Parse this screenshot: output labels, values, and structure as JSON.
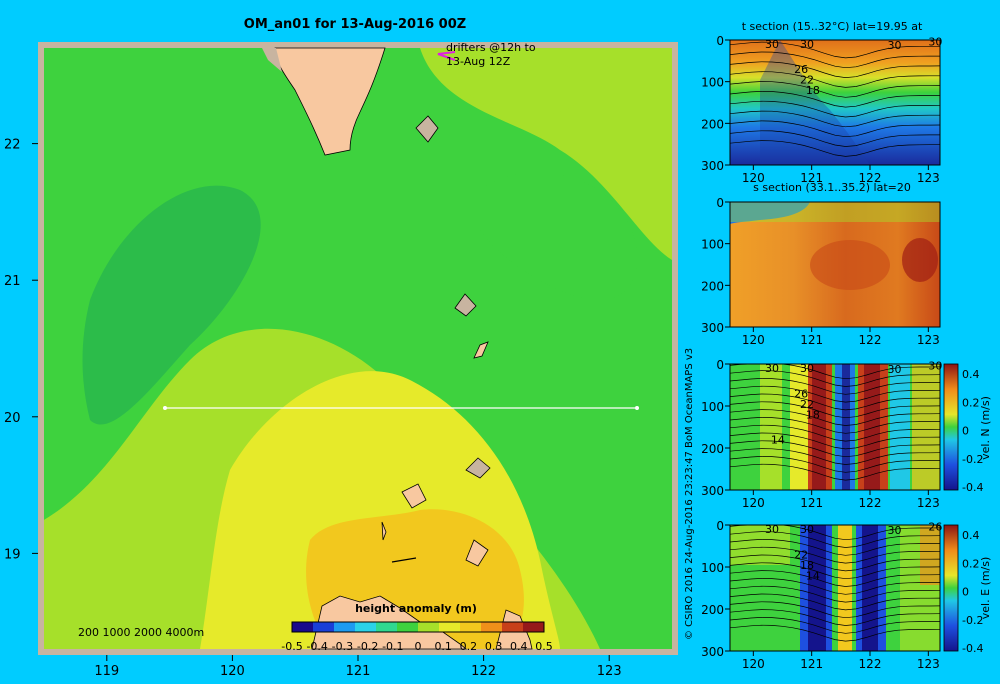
{
  "main_map": {
    "title": "OM_an01 for 13-Aug-2016 00Z",
    "drifter_label_1": "drifters @12h to",
    "drifter_label_2": "13-Aug 12Z",
    "depth_legend": "200 1000 2000 4000m",
    "colorbar_title": "height anomaly (m)",
    "colorbar_ticks": [
      "-0.5",
      "-0.4",
      "-0.3",
      "-0.2",
      "-0.1",
      "0",
      "0.1",
      "0.2",
      "0.3",
      "0.4",
      "0.5"
    ],
    "colorbar_colors": [
      "#1a0a8c",
      "#1a3fd8",
      "#1e9bf0",
      "#2bd2e8",
      "#30d890",
      "#3ed23e",
      "#a6e02a",
      "#e6ea2a",
      "#f2c81e",
      "#f0901a",
      "#c8401a",
      "#961a1a"
    ],
    "lon_ticks": [
      "119",
      "120",
      "121",
      "122",
      "123"
    ],
    "lat_ticks": [
      "22",
      "21",
      "20",
      "19"
    ],
    "colors": {
      "land": "#f8c8a0",
      "frame": "#c8b4a0",
      "section_line": "#ffffff",
      "drifter": "#e020e0"
    }
  },
  "credit": "© CSIRO 2016   24-Aug-2016 23:23:47 BoM OceanMAPS v3",
  "sections": [
    {
      "title": "t section (15..32°C) lat=19.95 at",
      "contour_labels": [
        "30",
        "30",
        "30",
        "30",
        "26",
        "22",
        "18"
      ]
    },
    {
      "title": "s section (33.1..35.2) lat=20",
      "contour_labels": []
    },
    {
      "title": "",
      "contour_labels": [
        "30",
        "30",
        "30",
        "30",
        "26",
        "22",
        "18",
        "14"
      ],
      "colorbar_label": "vel. N (m/s)"
    },
    {
      "title": "",
      "contour_labels": [
        "30",
        "30",
        "30",
        "26",
        "22",
        "18",
        "14"
      ],
      "colorbar_label": "vel. E (m/s)"
    }
  ],
  "section_x_ticks": [
    "120",
    "121",
    "122",
    "123"
  ],
  "section_y_ticks": [
    "0",
    "100",
    "200",
    "300"
  ],
  "vel_colorbar_ticks": [
    "0.4",
    "0.2",
    "0",
    "-0.2",
    "-0.4"
  ],
  "chart_data": [
    {
      "type": "heatmap",
      "title": "OM_an01 for 13-Aug-2016 00Z",
      "xlabel": "",
      "ylabel": "",
      "xlim": [
        118.5,
        123.5
      ],
      "ylim": [
        18.3,
        22.7
      ],
      "x_ticks": [
        119,
        120,
        121,
        122,
        123
      ],
      "y_ticks": [
        19,
        20,
        21,
        22
      ],
      "colorbar": {
        "label": "height anomaly (m)",
        "range": [
          -0.5,
          0.5
        ]
      },
      "section_line": {
        "lat": 20,
        "lon_start": 119.5,
        "lon_end": 123.2
      }
    },
    {
      "type": "heatmap",
      "title": "t section (15..32°C) lat=19.95 at",
      "x_ticks": [
        120,
        121,
        122,
        123
      ],
      "y_ticks": [
        0,
        100,
        200,
        300
      ],
      "xlim": [
        119.6,
        123.2
      ],
      "ylim": [
        300,
        0
      ]
    },
    {
      "type": "heatmap",
      "title": "s section (33.1..35.2) lat=20",
      "x_ticks": [
        120,
        121,
        122,
        123
      ],
      "y_ticks": [
        0,
        100,
        200,
        300
      ],
      "xlim": [
        119.6,
        123.2
      ],
      "ylim": [
        300,
        0
      ]
    },
    {
      "type": "heatmap",
      "title": "",
      "x_ticks": [
        120,
        121,
        122,
        123
      ],
      "y_ticks": [
        0,
        100,
        200,
        300
      ],
      "xlim": [
        119.6,
        123.2
      ],
      "ylim": [
        300,
        0
      ],
      "colorbar": {
        "label": "vel. N (m/s)",
        "range": [
          -0.4,
          0.4
        ]
      }
    },
    {
      "type": "heatmap",
      "title": "",
      "x_ticks": [
        120,
        121,
        122,
        123
      ],
      "y_ticks": [
        0,
        100,
        200,
        300
      ],
      "xlim": [
        119.6,
        123.2
      ],
      "ylim": [
        300,
        0
      ],
      "colorbar": {
        "label": "vel. E (m/s)",
        "range": [
          -0.4,
          0.4
        ]
      }
    }
  ]
}
